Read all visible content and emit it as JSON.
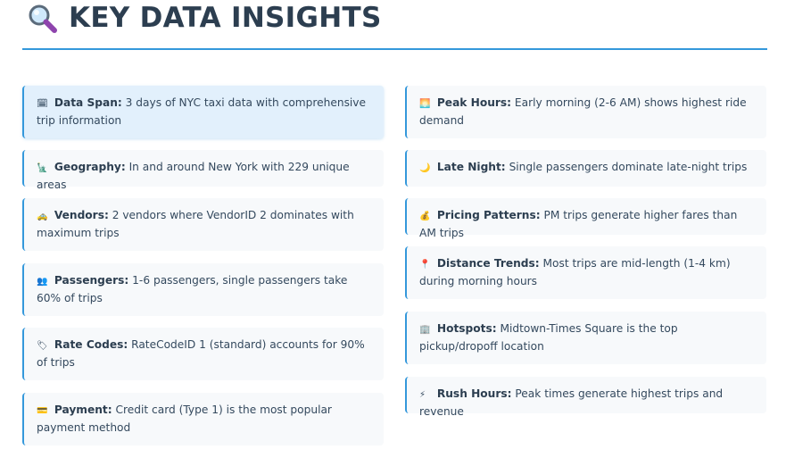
{
  "header": {
    "title": "KEY DATA INSIGHTS",
    "icon": "magnifier-icon"
  },
  "left": [
    {
      "icon": "calendar-icon",
      "glyph": "🗓",
      "label": "Data Span:",
      "text": "3 days of NYC taxi data with comprehensive trip information"
    },
    {
      "icon": "statue-of-liberty-icon",
      "glyph": "🗽",
      "label": "Geography:",
      "text": "In and around New York with 229 unique areas"
    },
    {
      "icon": "taxi-icon",
      "glyph": "🚕",
      "label": "Vendors:",
      "text": "2 vendors where VendorID 2 dominates with maximum trips"
    },
    {
      "icon": "people-icon",
      "glyph": "👥",
      "label": "Passengers:",
      "text": "1-6 passengers, single passengers take 60% of trips"
    },
    {
      "icon": "tag-icon",
      "glyph": "🏷",
      "label": "Rate Codes:",
      "text": "RateCodeID 1 (standard) accounts for 90% of trips"
    },
    {
      "icon": "credit-card-icon",
      "glyph": "💳",
      "label": "Payment:",
      "text": "Credit card (Type 1) is the most popular payment method"
    }
  ],
  "right": [
    {
      "icon": "sunrise-icon",
      "glyph": "🌅",
      "label": "Peak Hours:",
      "text": "Early morning (2-6 AM) shows highest ride demand"
    },
    {
      "icon": "moon-icon",
      "glyph": "🌙",
      "label": "Late Night:",
      "text": "Single passengers dominate late-night trips"
    },
    {
      "icon": "money-bag-icon",
      "glyph": "💰",
      "label": "Pricing Patterns:",
      "text": "PM trips generate higher fares than AM trips"
    },
    {
      "icon": "pin-icon",
      "glyph": "📍",
      "label": "Distance Trends:",
      "text": "Most trips are mid-length (1-4 km) during morning hours"
    },
    {
      "icon": "building-icon",
      "glyph": "🏢",
      "label": "Hotspots:",
      "text": "Midtown-Times Square is the top pickup/dropoff location"
    },
    {
      "icon": "lightning-icon",
      "glyph": "⚡",
      "label": "Rush Hours:",
      "text": "Peak times generate highest trips and revenue"
    }
  ]
}
